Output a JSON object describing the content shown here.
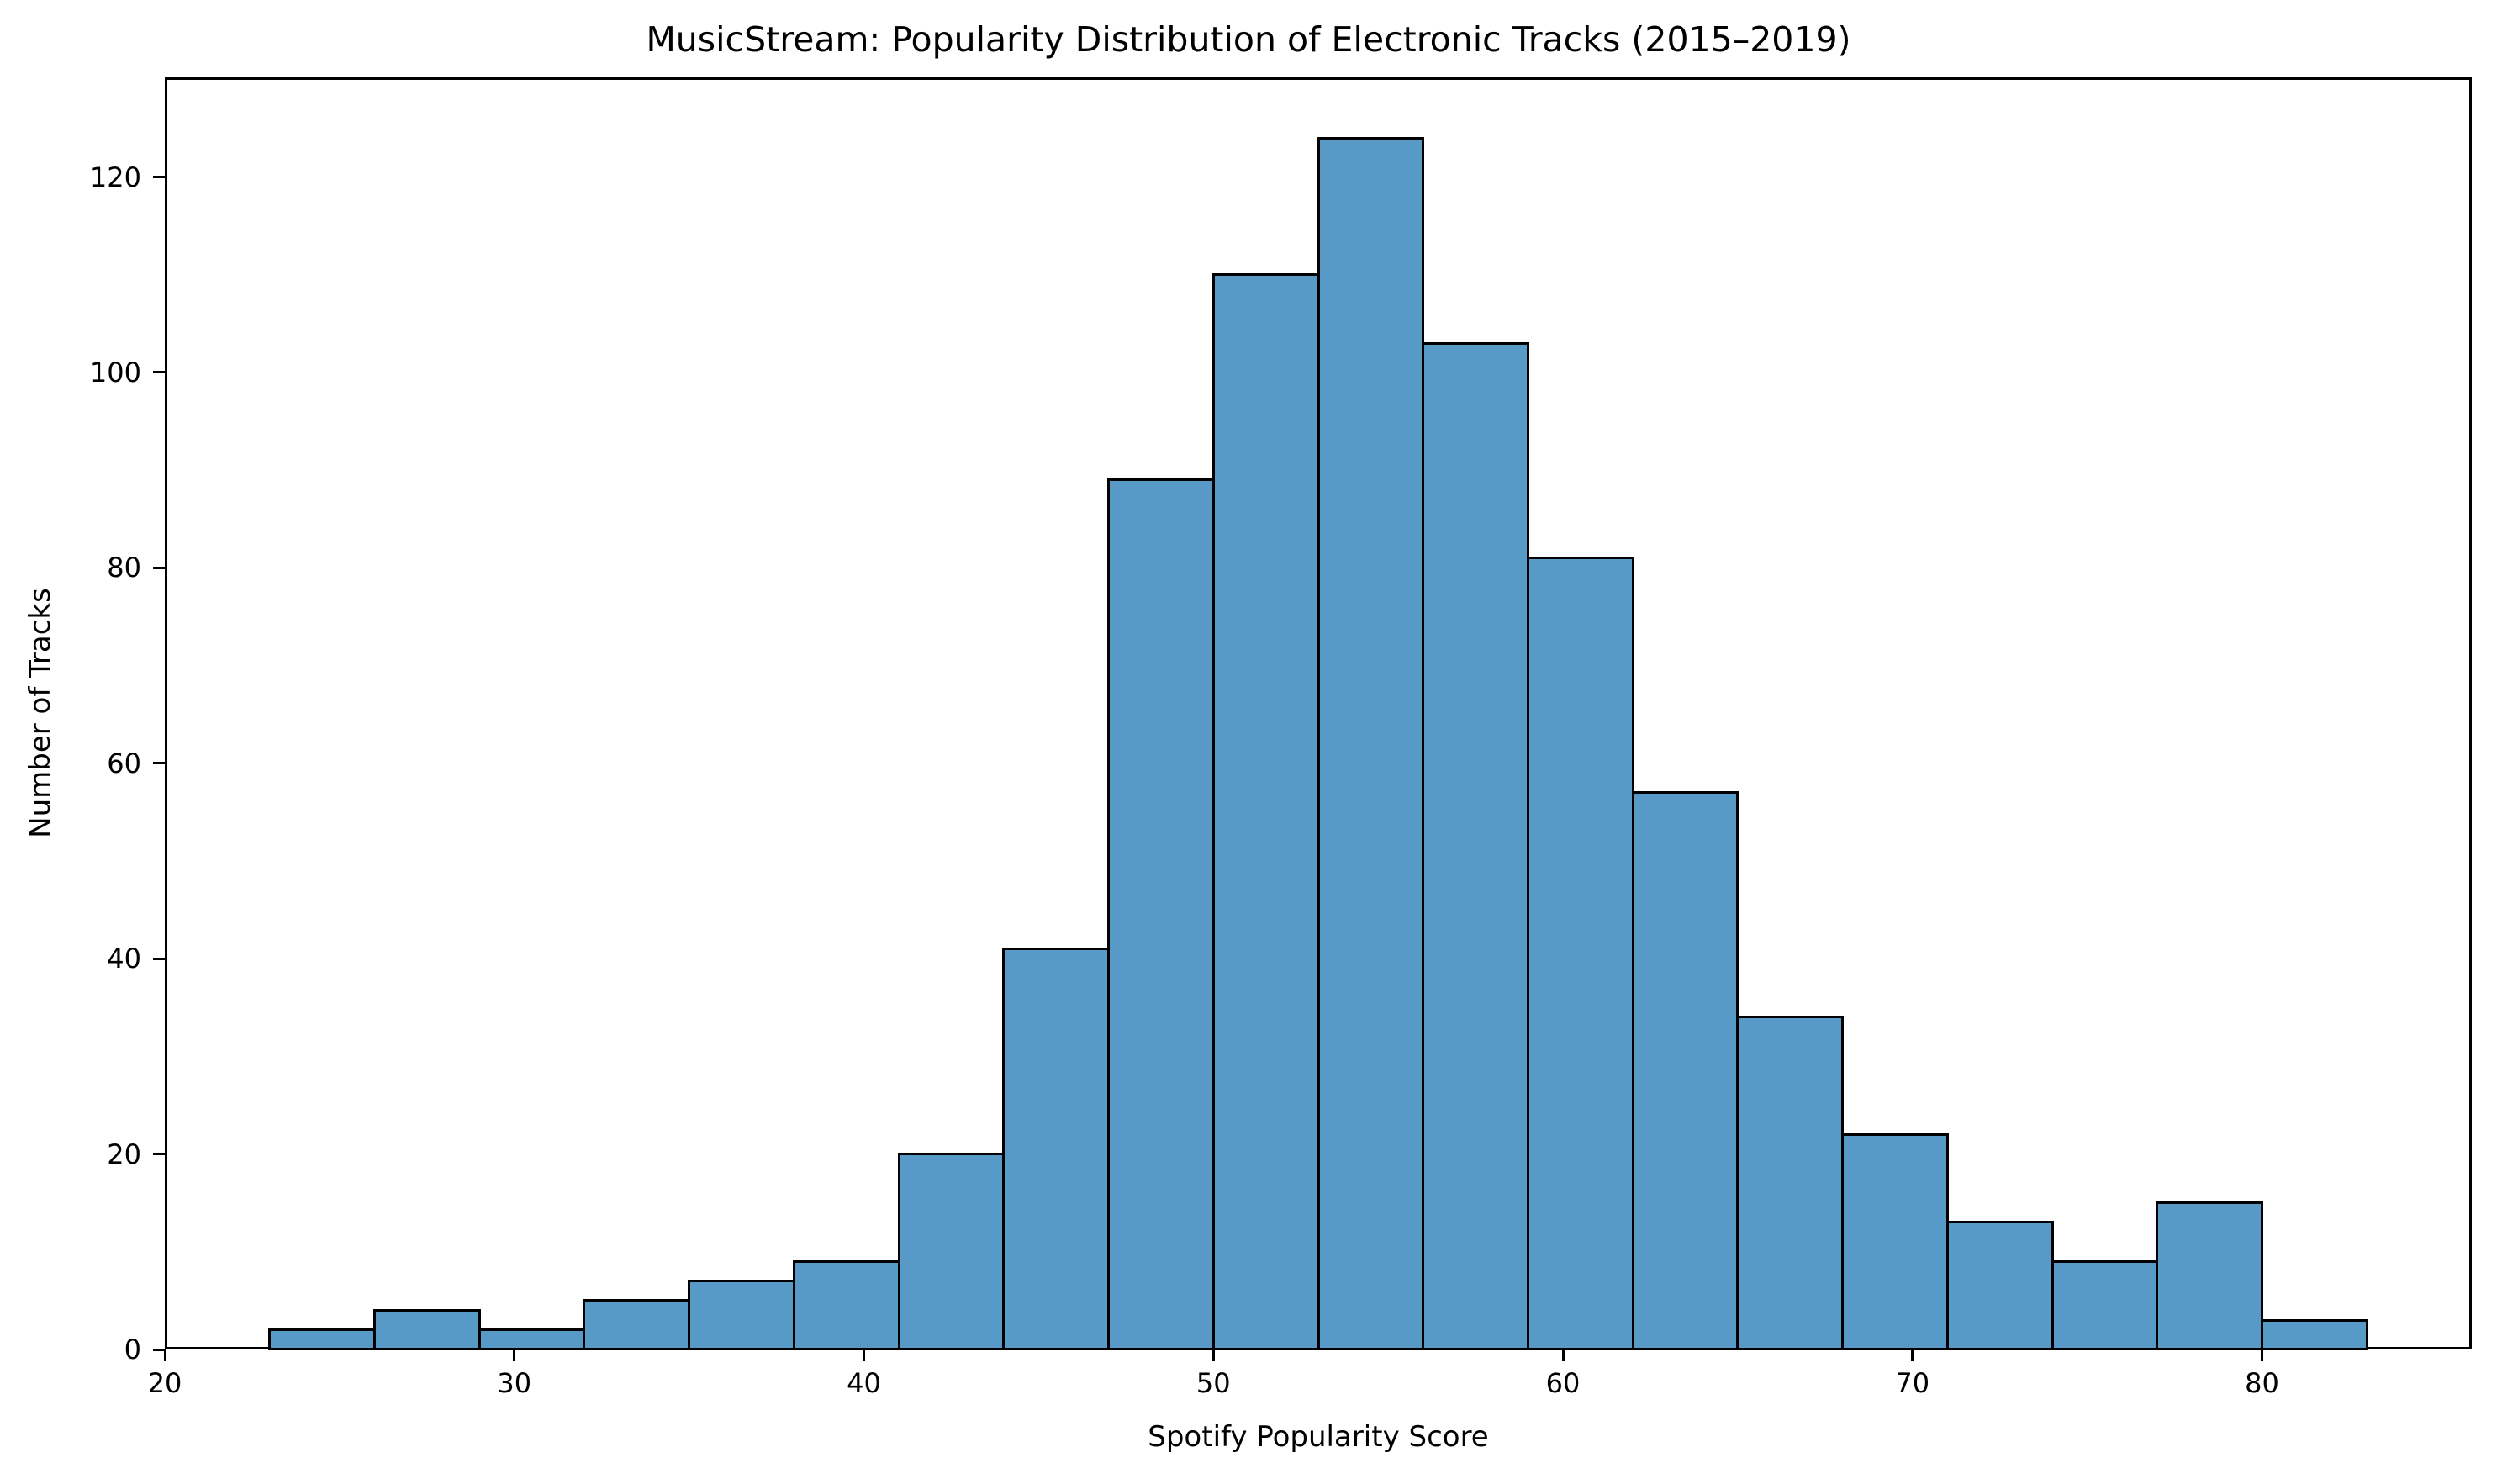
{
  "chart_data": {
    "type": "bar",
    "subtype": "histogram",
    "title": "MusicStream: Popularity Distribution of Electronic Tracks (2015–2019)",
    "xlabel": "Spotify Popularity Score",
    "ylabel": "Number of Tracks",
    "xlim": [
      20,
      86
    ],
    "ylim": [
      0,
      130.2
    ],
    "xticks": [
      20,
      30,
      40,
      50,
      60,
      70,
      80
    ],
    "yticks": [
      0,
      20,
      40,
      60,
      80,
      100,
      120
    ],
    "grid": false,
    "legend": null,
    "bin_width": 3,
    "bins": [
      {
        "start": 23,
        "end": 26,
        "count": 2
      },
      {
        "start": 26,
        "end": 29,
        "count": 4
      },
      {
        "start": 29,
        "end": 32,
        "count": 2
      },
      {
        "start": 32,
        "end": 35,
        "count": 5
      },
      {
        "start": 35,
        "end": 38,
        "count": 7
      },
      {
        "start": 38,
        "end": 41,
        "count": 9
      },
      {
        "start": 41,
        "end": 44,
        "count": 20
      },
      {
        "start": 44,
        "end": 47,
        "count": 41
      },
      {
        "start": 47,
        "end": 50,
        "count": 89
      },
      {
        "start": 50,
        "end": 53,
        "count": 110
      },
      {
        "start": 53,
        "end": 56,
        "count": 124
      },
      {
        "start": 56,
        "end": 59,
        "count": 103
      },
      {
        "start": 59,
        "end": 62,
        "count": 81
      },
      {
        "start": 62,
        "end": 65,
        "count": 57
      },
      {
        "start": 65,
        "end": 68,
        "count": 34
      },
      {
        "start": 68,
        "end": 71,
        "count": 22
      },
      {
        "start": 71,
        "end": 74,
        "count": 13
      },
      {
        "start": 74,
        "end": 77,
        "count": 9
      },
      {
        "start": 77,
        "end": 80,
        "count": 15
      },
      {
        "start": 80,
        "end": 83,
        "count": 3
      }
    ],
    "categories": [
      "23-26",
      "26-29",
      "29-32",
      "32-35",
      "35-38",
      "38-41",
      "41-44",
      "44-47",
      "47-50",
      "50-53",
      "53-56",
      "56-59",
      "59-62",
      "62-65",
      "65-68",
      "68-71",
      "71-74",
      "74-77",
      "77-80",
      "80-83"
    ],
    "values": [
      2,
      4,
      2,
      5,
      7,
      9,
      20,
      41,
      89,
      110,
      124,
      103,
      81,
      57,
      34,
      22,
      13,
      9,
      15,
      3
    ]
  },
  "colors": {
    "bar_fill": "#5799c7",
    "bar_edge": "#000000",
    "background": "#ffffff",
    "axis": "#000000"
  }
}
